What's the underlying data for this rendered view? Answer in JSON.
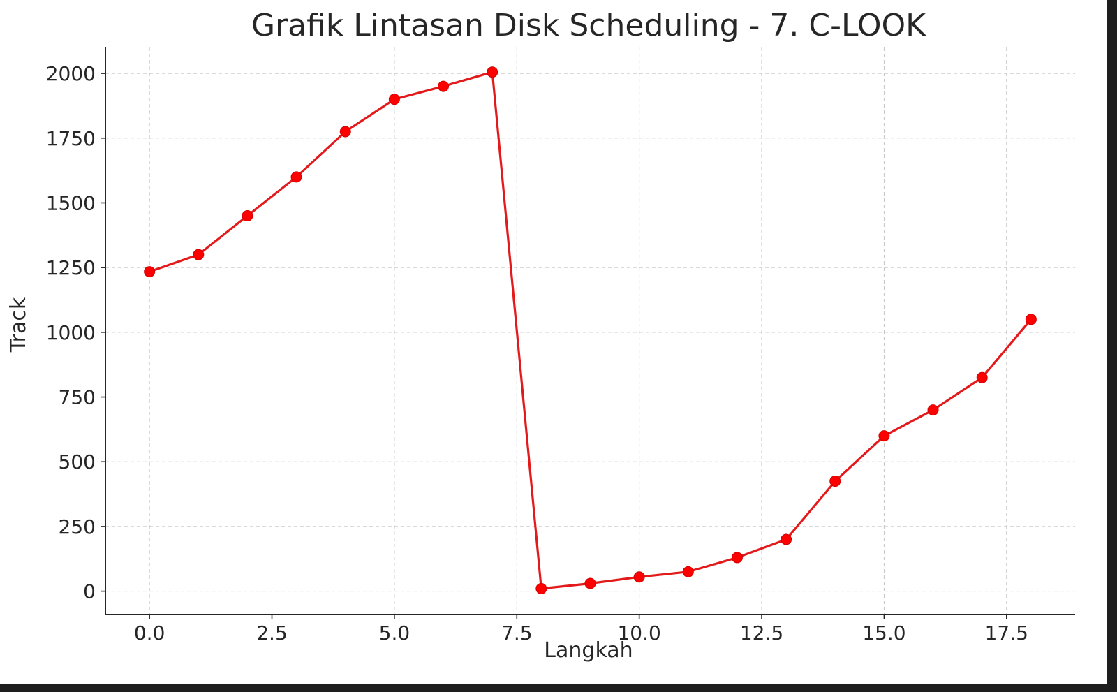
{
  "chart_data": {
    "type": "line",
    "title": "Grafik Lintasan Disk Scheduling - 7. C-LOOK",
    "xlabel": "Langkah",
    "ylabel": "Track",
    "xlim": [
      -0.9,
      18.9
    ],
    "ylim": [
      -90,
      2100
    ],
    "x_ticks": [
      0.0,
      2.5,
      5.0,
      7.5,
      10.0,
      12.5,
      15.0,
      17.5
    ],
    "x_tick_labels": [
      "0.0",
      "2.5",
      "5.0",
      "7.5",
      "10.0",
      "12.5",
      "15.0",
      "17.5"
    ],
    "y_ticks": [
      0,
      250,
      500,
      750,
      1000,
      1250,
      1500,
      1750,
      2000
    ],
    "y_tick_labels": [
      "0",
      "250",
      "500",
      "750",
      "1000",
      "1250",
      "1500",
      "1750",
      "2000"
    ],
    "grid": true,
    "colors": {
      "line": "#e31a1c",
      "marker": "#ff0000"
    },
    "series": [
      {
        "x": [
          0,
          1,
          2,
          3,
          4,
          5,
          6,
          7,
          8,
          9,
          10,
          11,
          12,
          13,
          14,
          15,
          16,
          17,
          18
        ],
        "values": [
          1234,
          1300,
          1450,
          1600,
          1775,
          1900,
          1950,
          2005,
          10,
          30,
          55,
          75,
          130,
          200,
          425,
          600,
          700,
          825,
          1050
        ]
      }
    ]
  }
}
